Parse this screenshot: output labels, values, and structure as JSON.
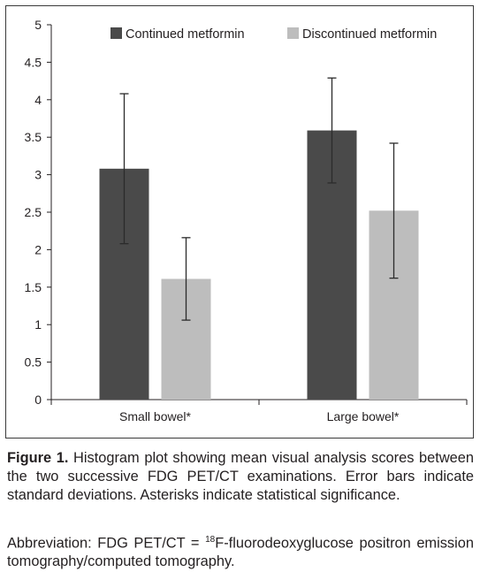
{
  "chart_data": {
    "type": "bar",
    "categories": [
      "Small bowel*",
      "Large bowel*"
    ],
    "series": [
      {
        "name": "Continued metformin",
        "values": [
          3.08,
          3.59
        ],
        "errors": [
          1.0,
          0.7
        ],
        "color": "#4a4a4a"
      },
      {
        "name": "Discontinued metformin",
        "values": [
          1.61,
          2.52
        ],
        "errors": [
          0.55,
          0.9
        ],
        "color": "#bdbdbd"
      }
    ],
    "ylim": [
      0,
      5
    ],
    "yticks": [
      "0",
      "0.5",
      "1",
      "1.5",
      "2",
      "2.5",
      "3",
      "3.5",
      "4",
      "4.5",
      "5"
    ],
    "error_bar_color": "#2b2b2b",
    "grid": false,
    "legend_position": "top"
  },
  "caption": {
    "label": "Figure 1.",
    "text": " Histogram plot showing mean visual analysis scores between the two successive FDG PET/CT examinations. Error bars indicate standard deviations. Asterisks indicate statistical significance.",
    "abbrev_prefix": "Abbreviation: FDG PET/CT = ",
    "abbrev_sup": "18",
    "abbrev_rest": "F-fluorodeoxyglucose positron emission tomography/computed tomography."
  }
}
